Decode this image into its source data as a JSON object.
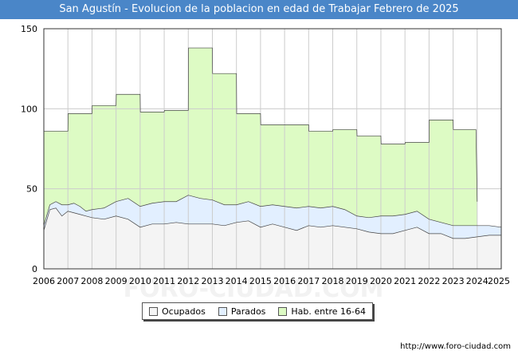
{
  "header": {
    "title": "San Agustín - Evolucion de la poblacion en edad de Trabajar Febrero de 2025"
  },
  "footer": {
    "url": "http://www.foro-ciudad.com"
  },
  "watermark": "FORO-CIUDAD.COM",
  "colors": {
    "title_bg": "#4a86c8",
    "hab_fill": "#ddfbc4",
    "parados_fill": "#e2efff",
    "ocupados_fill": "#f4f4f4",
    "series_line": "#444444"
  },
  "chart_data": {
    "type": "area",
    "title": "San Agustín - Evolucion de la poblacion en edad de Trabajar Febrero de 2025",
    "xlabel": "",
    "ylabel": "",
    "xlim": [
      2006,
      2025
    ],
    "ylim": [
      0,
      150
    ],
    "yticks": [
      0,
      50,
      100,
      150
    ],
    "xticks": [
      "2006",
      "2007",
      "2008",
      "2009",
      "2010",
      "2011",
      "2012",
      "2013",
      "2014",
      "2015",
      "2016",
      "2017",
      "2018",
      "2019",
      "2020",
      "2021",
      "2022",
      "2023",
      "2024",
      "2025"
    ],
    "grid": true,
    "legend_position": "bottom-center",
    "series": [
      {
        "name": "Ocupados",
        "x": [
          2006.0,
          2006.25,
          2006.5,
          2006.75,
          2007.0,
          2007.25,
          2007.5,
          2007.75,
          2008.0,
          2008.5,
          2009.0,
          2009.5,
          2010.0,
          2010.5,
          2011.0,
          2011.5,
          2012.0,
          2012.5,
          2013.0,
          2013.5,
          2014.0,
          2014.5,
          2015.0,
          2015.5,
          2016.0,
          2016.5,
          2017.0,
          2017.5,
          2018.0,
          2018.5,
          2019.0,
          2019.5,
          2020.0,
          2020.5,
          2021.0,
          2021.5,
          2022.0,
          2022.5,
          2023.0,
          2023.5,
          2024.0,
          2024.5,
          2025.0
        ],
        "values": [
          24,
          37,
          38,
          33,
          36,
          35,
          34,
          33,
          32,
          31,
          33,
          31,
          26,
          28,
          28,
          29,
          28,
          28,
          28,
          27,
          29,
          30,
          26,
          28,
          26,
          24,
          27,
          26,
          27,
          26,
          25,
          23,
          22,
          22,
          24,
          26,
          22,
          22,
          19,
          19,
          20,
          21,
          21
        ]
      },
      {
        "name": "Parados",
        "x": [
          2006.0,
          2006.25,
          2006.5,
          2006.75,
          2007.0,
          2007.25,
          2007.5,
          2007.75,
          2008.0,
          2008.5,
          2009.0,
          2009.5,
          2010.0,
          2010.5,
          2011.0,
          2011.5,
          2012.0,
          2012.5,
          2013.0,
          2013.5,
          2014.0,
          2014.5,
          2015.0,
          2015.5,
          2016.0,
          2016.5,
          2017.0,
          2017.5,
          2018.0,
          2018.5,
          2019.0,
          2019.5,
          2020.0,
          2020.5,
          2021.0,
          2021.5,
          2022.0,
          2022.5,
          2023.0,
          2023.5,
          2024.0,
          2024.5,
          2025.0
        ],
        "values": [
          3,
          3,
          4,
          7,
          4,
          6,
          5,
          3,
          5,
          7,
          9,
          13,
          13,
          13,
          14,
          13,
          18,
          16,
          15,
          13,
          11,
          12,
          13,
          12,
          13,
          14,
          12,
          12,
          12,
          11,
          8,
          9,
          11,
          11,
          10,
          10,
          9,
          7,
          8,
          8,
          7,
          6,
          5
        ]
      },
      {
        "name": "Hab. entre 16-64",
        "x": [
          2006.0,
          2007.0,
          2007.01,
          2008.0,
          2008.01,
          2009.0,
          2009.01,
          2010.0,
          2010.01,
          2011.0,
          2011.01,
          2012.0,
          2012.01,
          2013.0,
          2013.01,
          2014.0,
          2014.01,
          2015.0,
          2015.01,
          2016.0,
          2016.01,
          2017.0,
          2017.01,
          2018.0,
          2018.01,
          2019.0,
          2019.01,
          2020.0,
          2020.01,
          2021.0,
          2021.01,
          2022.0,
          2022.01,
          2023.0,
          2023.01,
          2023.95,
          2024.0
        ],
        "values": [
          86,
          86,
          97,
          97,
          102,
          102,
          109,
          109,
          98,
          98,
          99,
          99,
          138,
          138,
          122,
          122,
          97,
          97,
          90,
          90,
          90,
          90,
          86,
          86,
          87,
          87,
          83,
          83,
          78,
          78,
          79,
          79,
          93,
          93,
          87,
          87,
          42
        ]
      }
    ]
  }
}
